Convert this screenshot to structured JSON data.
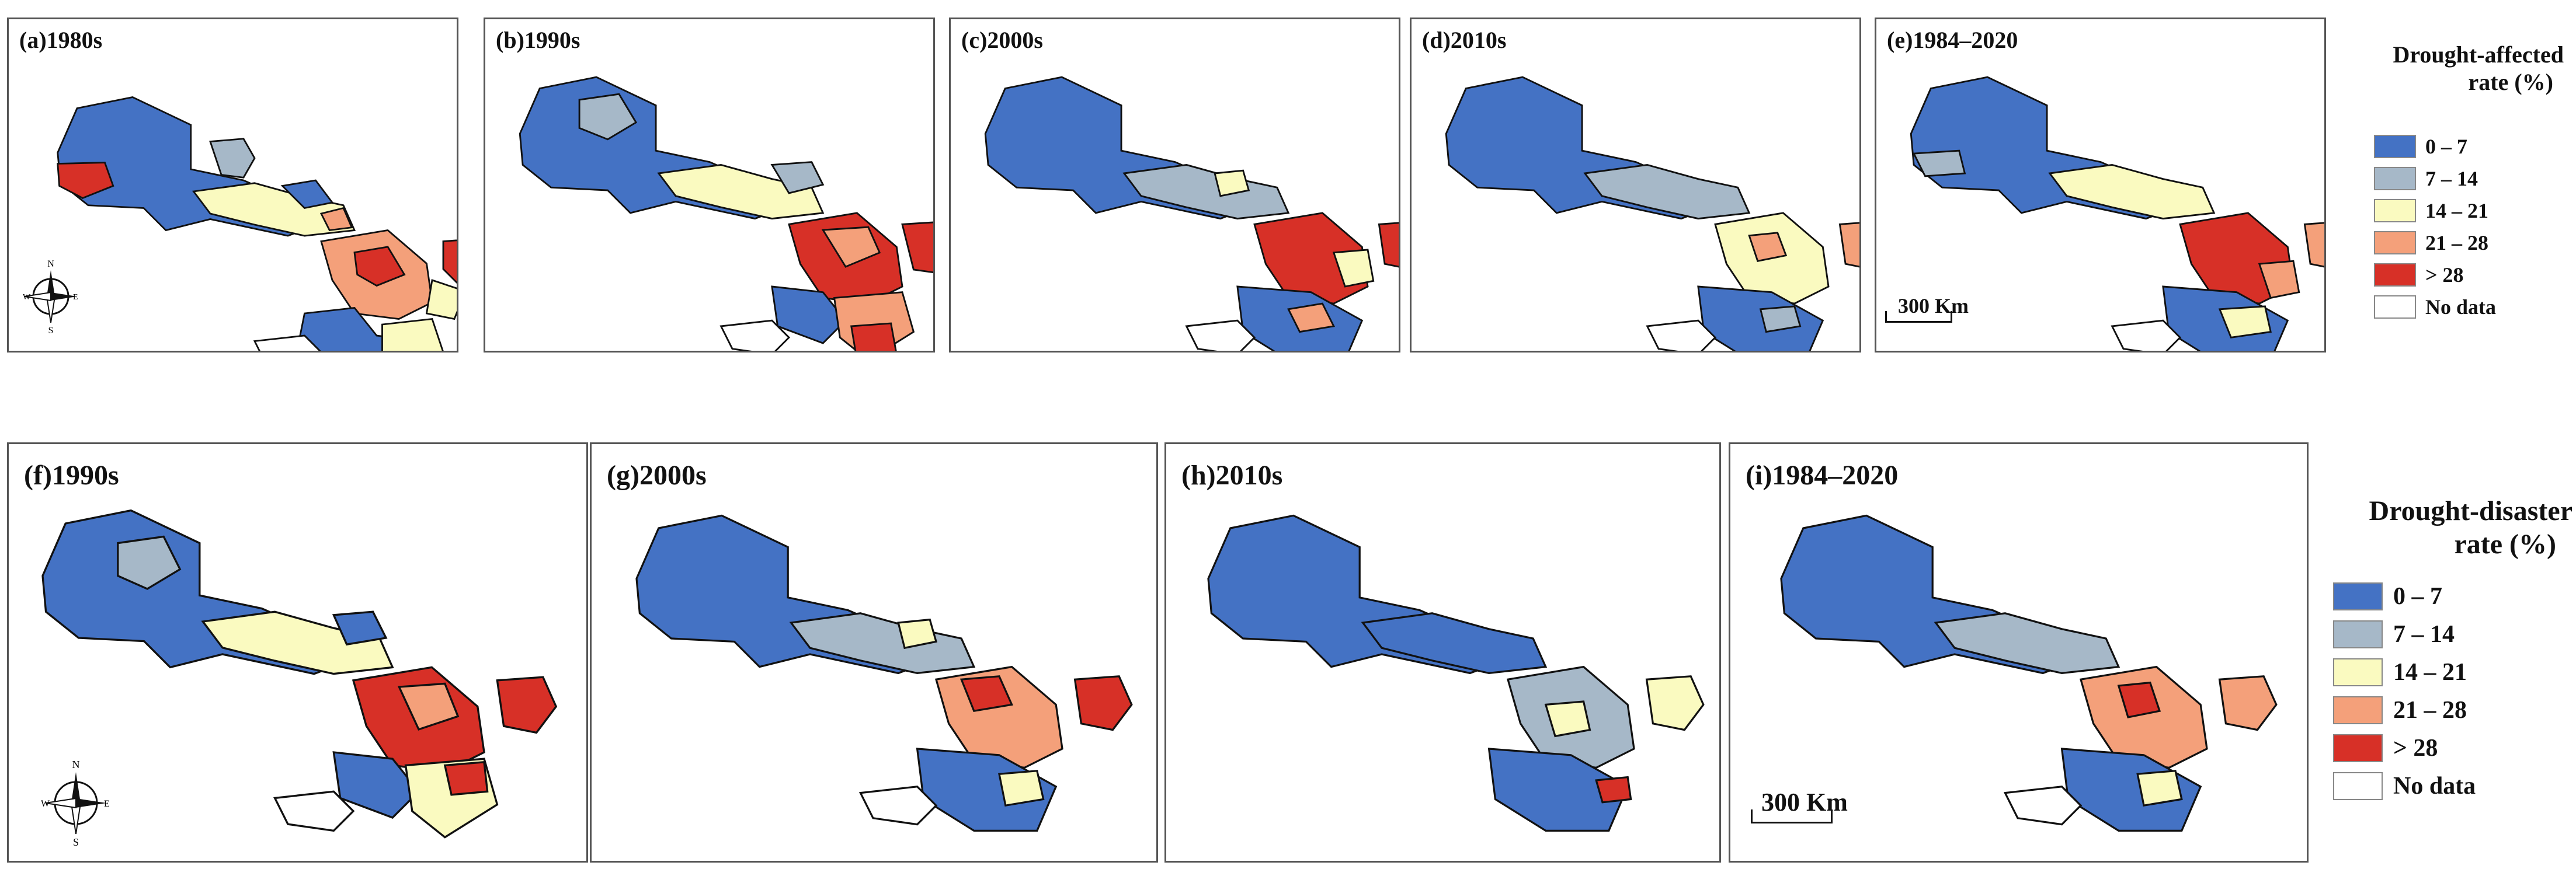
{
  "top_row": {
    "panels": [
      {
        "label": "(a)1980s"
      },
      {
        "label": "(b)1990s"
      },
      {
        "label": "(c)2000s"
      },
      {
        "label": "(d)2010s"
      },
      {
        "label": "(e)1984–2020"
      }
    ],
    "legend": {
      "title_line1": "Drought-affected",
      "title_line2": "rate (%)",
      "items": [
        {
          "label": "0 – 7",
          "color": "#4472c4"
        },
        {
          "label": "7 – 14",
          "color": "#a6b8c8"
        },
        {
          "label": "14 – 21",
          "color": "#fafac0"
        },
        {
          "label": "21 – 28",
          "color": "#f4a07a"
        },
        {
          "label": "> 28",
          "color": "#d73027"
        },
        {
          "label": "No data",
          "color": "#ffffff"
        }
      ]
    },
    "scale": "300 Km"
  },
  "bottom_row": {
    "panels": [
      {
        "label": "(f)1990s"
      },
      {
        "label": "(g)2000s"
      },
      {
        "label": "(h)2010s"
      },
      {
        "label": "(i)1984–2020"
      }
    ],
    "legend": {
      "title_line1": "Drought-disaster",
      "title_line2": "rate (%)",
      "items": [
        {
          "label": "0 – 7",
          "color": "#4472c4"
        },
        {
          "label": "7 – 14",
          "color": "#a6b8c8"
        },
        {
          "label": "14 – 21",
          "color": "#fafac0"
        },
        {
          "label": "21 – 28",
          "color": "#f4a07a"
        },
        {
          "label": "> 28",
          "color": "#d73027"
        },
        {
          "label": "No data",
          "color": "#ffffff"
        }
      ]
    },
    "scale": "300 Km"
  },
  "compass": {
    "north": "N",
    "south": "S",
    "east": "E",
    "west": "W"
  }
}
